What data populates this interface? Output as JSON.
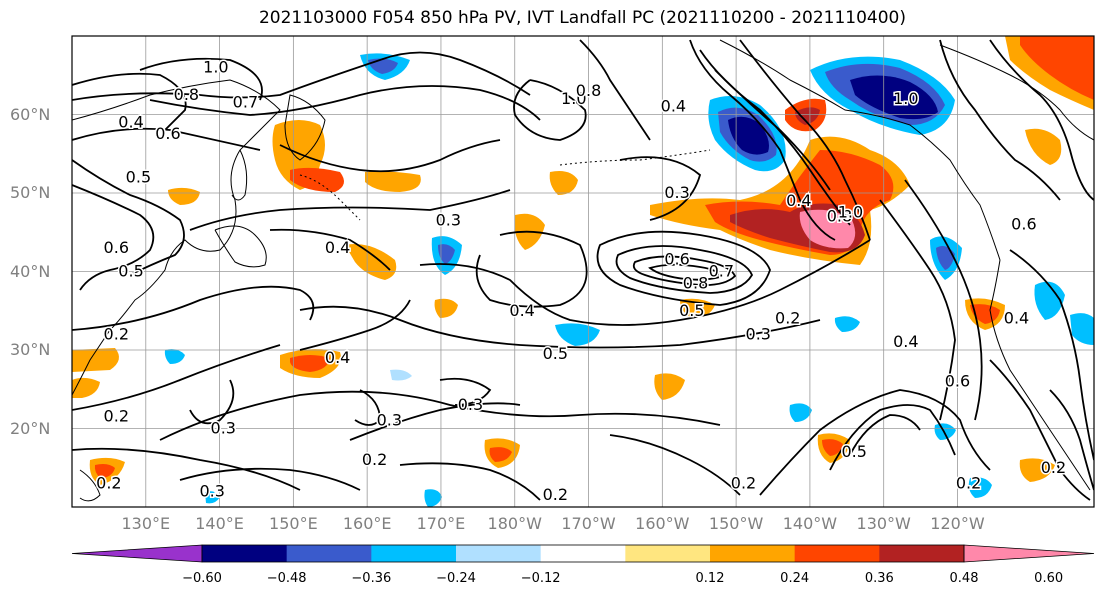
{
  "title": "2021103000 F054 850 hPa PV, IVT Landfall PC (2021110200 - 2021110400)",
  "y_ticks": [
    {
      "label": "60°N",
      "lat": 60
    },
    {
      "label": "50°N",
      "lat": 50
    },
    {
      "label": "40°N",
      "lat": 40
    },
    {
      "label": "30°N",
      "lat": 30
    },
    {
      "label": "20°N",
      "lat": 20
    }
  ],
  "x_ticks": [
    {
      "label": "130°E",
      "lon": 130
    },
    {
      "label": "140°E",
      "lon": 140
    },
    {
      "label": "150°E",
      "lon": 150
    },
    {
      "label": "160°E",
      "lon": 160
    },
    {
      "label": "170°E",
      "lon": 170
    },
    {
      "label": "180°W",
      "lon": 180
    },
    {
      "label": "170°W",
      "lon": 190
    },
    {
      "label": "160°W",
      "lon": 200
    },
    {
      "label": "150°W",
      "lon": 210
    },
    {
      "label": "140°W",
      "lon": 220
    },
    {
      "label": "130°W",
      "lon": 230
    },
    {
      "label": "120°W",
      "lon": 240
    }
  ],
  "colorbar": {
    "colors": [
      "#9932cc",
      "#000080",
      "#3a5bcc",
      "#00bfff",
      "#b0e0ff",
      "#ffffff",
      "#ffe680",
      "#ffa500",
      "#ff4500",
      "#b22222",
      "#ff88aa"
    ],
    "ticks": [
      "−0.60",
      "−0.48",
      "−0.36",
      "−0.24",
      "−0.12",
      "0.12",
      "0.24",
      "0.36",
      "0.48",
      "0.60"
    ]
  },
  "contour_labels": [
    {
      "text": "1.0",
      "lon": 139.5,
      "lat": 66
    },
    {
      "text": "0.8",
      "lon": 135.5,
      "lat": 62.5
    },
    {
      "text": "0.7",
      "lon": 143.5,
      "lat": 61.5
    },
    {
      "text": "0.4",
      "lon": 128,
      "lat": 59
    },
    {
      "text": "0.6",
      "lon": 133,
      "lat": 57.5
    },
    {
      "text": "0.5",
      "lon": 129,
      "lat": 52
    },
    {
      "text": "1.0",
      "lon": 188,
      "lat": 62
    },
    {
      "text": "0.8",
      "lon": 190,
      "lat": 63
    },
    {
      "text": "0.4",
      "lon": 201.5,
      "lat": 61
    },
    {
      "text": "0.3",
      "lon": 202,
      "lat": 50
    },
    {
      "text": "0.3",
      "lon": 171,
      "lat": 46.5
    },
    {
      "text": "0.4",
      "lon": 156,
      "lat": 43
    },
    {
      "text": "0.6",
      "lon": 126,
      "lat": 43
    },
    {
      "text": "0.5",
      "lon": 128,
      "lat": 40
    },
    {
      "text": "0.2",
      "lon": 126,
      "lat": 32
    },
    {
      "text": "0.4",
      "lon": 181,
      "lat": 35
    },
    {
      "text": "0.6",
      "lon": 202,
      "lat": 41.5
    },
    {
      "text": "0.7",
      "lon": 208,
      "lat": 40
    },
    {
      "text": "0.8",
      "lon": 204.5,
      "lat": 38.5
    },
    {
      "text": "0.5",
      "lon": 204,
      "lat": 35
    },
    {
      "text": "0.3",
      "lon": 213,
      "lat": 32
    },
    {
      "text": "0.2",
      "lon": 217,
      "lat": 34
    },
    {
      "text": "0.5",
      "lon": 185.5,
      "lat": 29.5
    },
    {
      "text": "0.4",
      "lon": 156,
      "lat": 29
    },
    {
      "text": "0.3",
      "lon": 174,
      "lat": 23
    },
    {
      "text": "0.3",
      "lon": 163,
      "lat": 21
    },
    {
      "text": "0.3",
      "lon": 140.5,
      "lat": 20
    },
    {
      "text": "0.2",
      "lon": 126,
      "lat": 21.5
    },
    {
      "text": "0.2",
      "lon": 161,
      "lat": 16
    },
    {
      "text": "0.2",
      "lon": 125,
      "lat": 13
    },
    {
      "text": "0.3",
      "lon": 139,
      "lat": 12
    },
    {
      "text": "0.2",
      "lon": 185.5,
      "lat": 11.5
    },
    {
      "text": "0.8",
      "lon": 224,
      "lat": 47
    },
    {
      "text": "1.0",
      "lon": 225.5,
      "lat": 47.5
    },
    {
      "text": "0.4",
      "lon": 218.5,
      "lat": 49
    },
    {
      "text": "1.0",
      "lon": 233,
      "lat": 62
    },
    {
      "text": "0.6",
      "lon": 249,
      "lat": 46
    },
    {
      "text": "0.4",
      "lon": 248,
      "lat": 34
    },
    {
      "text": "0.6",
      "lon": 240,
      "lat": 26
    },
    {
      "text": "0.4",
      "lon": 233,
      "lat": 31
    },
    {
      "text": "0.5",
      "lon": 226,
      "lat": 17
    },
    {
      "text": "0.2",
      "lon": 211,
      "lat": 13
    },
    {
      "text": "0.2",
      "lon": 241.5,
      "lat": 13
    },
    {
      "text": "0.2",
      "lon": 253,
      "lat": 15
    }
  ]
}
